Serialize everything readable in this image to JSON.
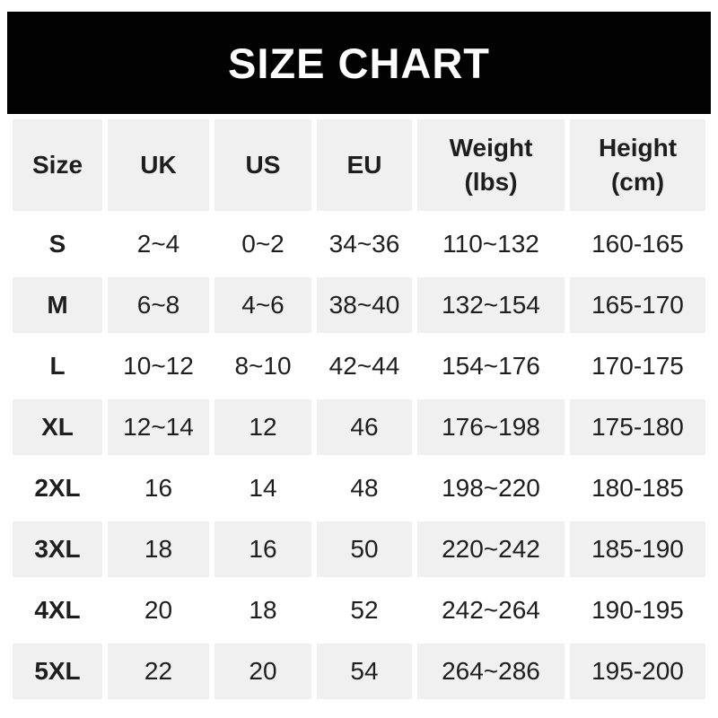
{
  "title": "SIZE CHART",
  "colors": {
    "banner_bg": "#020202",
    "banner_text": "#ffffff",
    "cell_gray": "#f1f0f1",
    "row_white": "#ffffff",
    "text": "#1e1e1f"
  },
  "chart_data": {
    "type": "table",
    "title": "SIZE CHART",
    "layout": "alternating row shading: odd rows white, even rows light gray; header row gray; white gaps between cells",
    "columns": [
      {
        "label": "Size",
        "unit": ""
      },
      {
        "label": "UK",
        "unit": ""
      },
      {
        "label": "US",
        "unit": ""
      },
      {
        "label": "EU",
        "unit": ""
      },
      {
        "label": "Weight",
        "unit": "(lbs)"
      },
      {
        "label": "Height",
        "unit": "(cm)"
      }
    ],
    "rows": [
      {
        "size": "S",
        "uk": "2~4",
        "us": "0~2",
        "eu": "34~36",
        "weight": "110~132",
        "height": "160-165"
      },
      {
        "size": "M",
        "uk": "6~8",
        "us": "4~6",
        "eu": "38~40",
        "weight": "132~154",
        "height": "165-170"
      },
      {
        "size": "L",
        "uk": "10~12",
        "us": "8~10",
        "eu": "42~44",
        "weight": "154~176",
        "height": "170-175"
      },
      {
        "size": "XL",
        "uk": "12~14",
        "us": "12",
        "eu": "46",
        "weight": "176~198",
        "height": "175-180"
      },
      {
        "size": "2XL",
        "uk": "16",
        "us": "14",
        "eu": "48",
        "weight": "198~220",
        "height": "180-185"
      },
      {
        "size": "3XL",
        "uk": "18",
        "us": "16",
        "eu": "50",
        "weight": "220~242",
        "height": "185-190"
      },
      {
        "size": "4XL",
        "uk": "20",
        "us": "18",
        "eu": "52",
        "weight": "242~264",
        "height": "190-195"
      },
      {
        "size": "5XL",
        "uk": "22",
        "us": "20",
        "eu": "54",
        "weight": "264~286",
        "height": "195-200"
      }
    ]
  }
}
